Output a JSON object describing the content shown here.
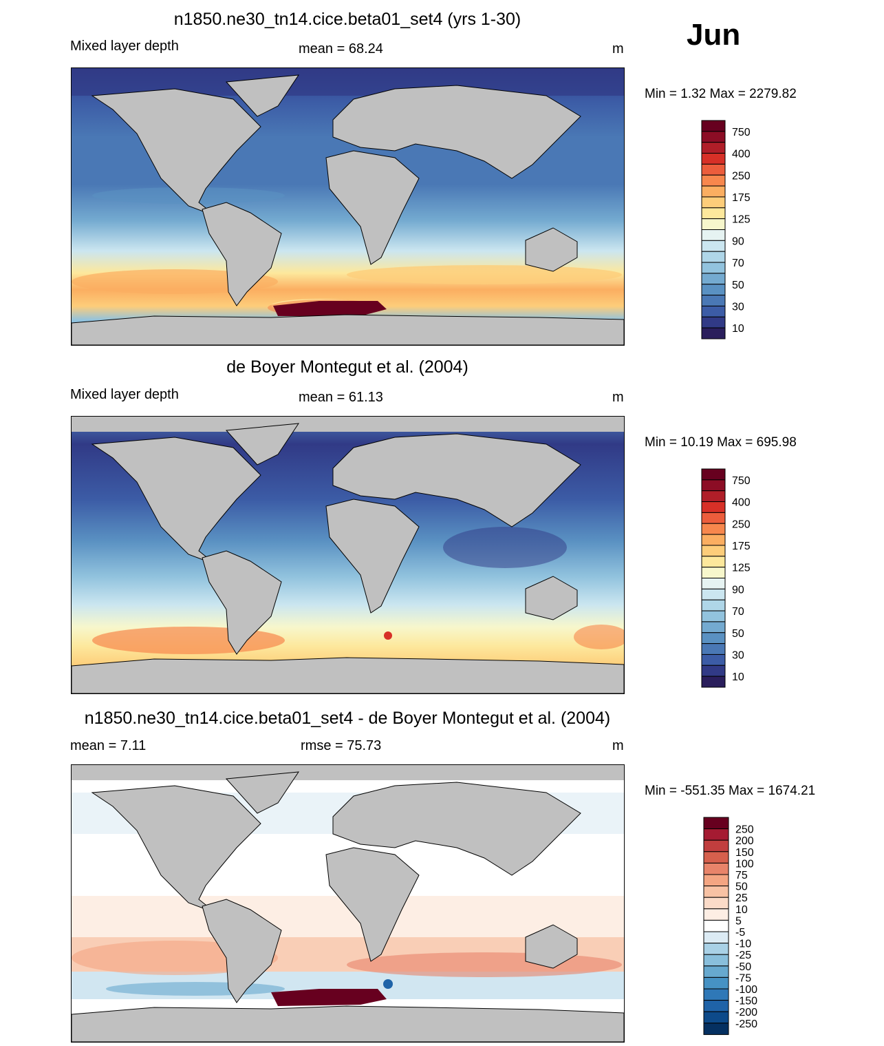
{
  "month": "Jun",
  "colors": {
    "land": "#c0c0c0",
    "mld_scale": [
      "#2a1e5c",
      "#313a86",
      "#3c5ca6",
      "#4a78b5",
      "#5a91c2",
      "#74aad0",
      "#92c3de",
      "#afd6e8",
      "#cbe6f0",
      "#e6f3f2",
      "#f7f7cc",
      "#fde89c",
      "#fdcd7a",
      "#fbae61",
      "#f7874d",
      "#ec5d3c",
      "#d73027",
      "#b01e28",
      "#8c0d25",
      "#67001f"
    ],
    "diff_scale": [
      "#053061",
      "#0d4a8a",
      "#1f63a8",
      "#2f78b7",
      "#4692c4",
      "#67a9cf",
      "#89bfdc",
      "#a9d1e6",
      "#c6e0ee",
      "#dcebf4",
      "#f0f4f8",
      "#ffffff",
      "#fdeee4",
      "#fbdbc8",
      "#f8c2a4",
      "#f4a582",
      "#e8846a",
      "#d6604d",
      "#c13e3e",
      "#a51b32",
      "#8a0b25",
      "#67001f"
    ]
  },
  "panels": [
    {
      "id": "model",
      "title": "n1850.ne30_tn14.cice.beta01_set4 (yrs 1-30)",
      "left_label": "Mixed layer depth",
      "center_label": "mean =  68.24",
      "units": "m",
      "minmax": "Min =   1.32 Max = 2279.82",
      "colorbar_labels": [
        "750",
        "400",
        "250",
        "175",
        "125",
        "90",
        "70",
        "50",
        "30",
        "10"
      ]
    },
    {
      "id": "obs",
      "title": "de Boyer Montegut et al. (2004)",
      "left_label": "Mixed layer depth",
      "center_label": "mean =  61.13",
      "units": "m",
      "minmax": "Min =  10.19 Max = 695.98",
      "colorbar_labels": [
        "750",
        "400",
        "250",
        "175",
        "125",
        "90",
        "70",
        "50",
        "30",
        "10"
      ]
    },
    {
      "id": "diff",
      "title": "n1850.ne30_tn14.cice.beta01_set4 - de Boyer Montegut et al. (2004)",
      "left_label": "mean =   7.11",
      "center_label": "rmse =  75.73",
      "units": "m",
      "minmax": "Min = -551.35 Max = 1674.21",
      "colorbar_labels": [
        "250",
        "200",
        "150",
        "100",
        "75",
        "50",
        "25",
        "10",
        "5",
        "-5",
        "-10",
        "-25",
        "-50",
        "-75",
        "-100",
        "-150",
        "-200",
        "-250"
      ]
    }
  ]
}
